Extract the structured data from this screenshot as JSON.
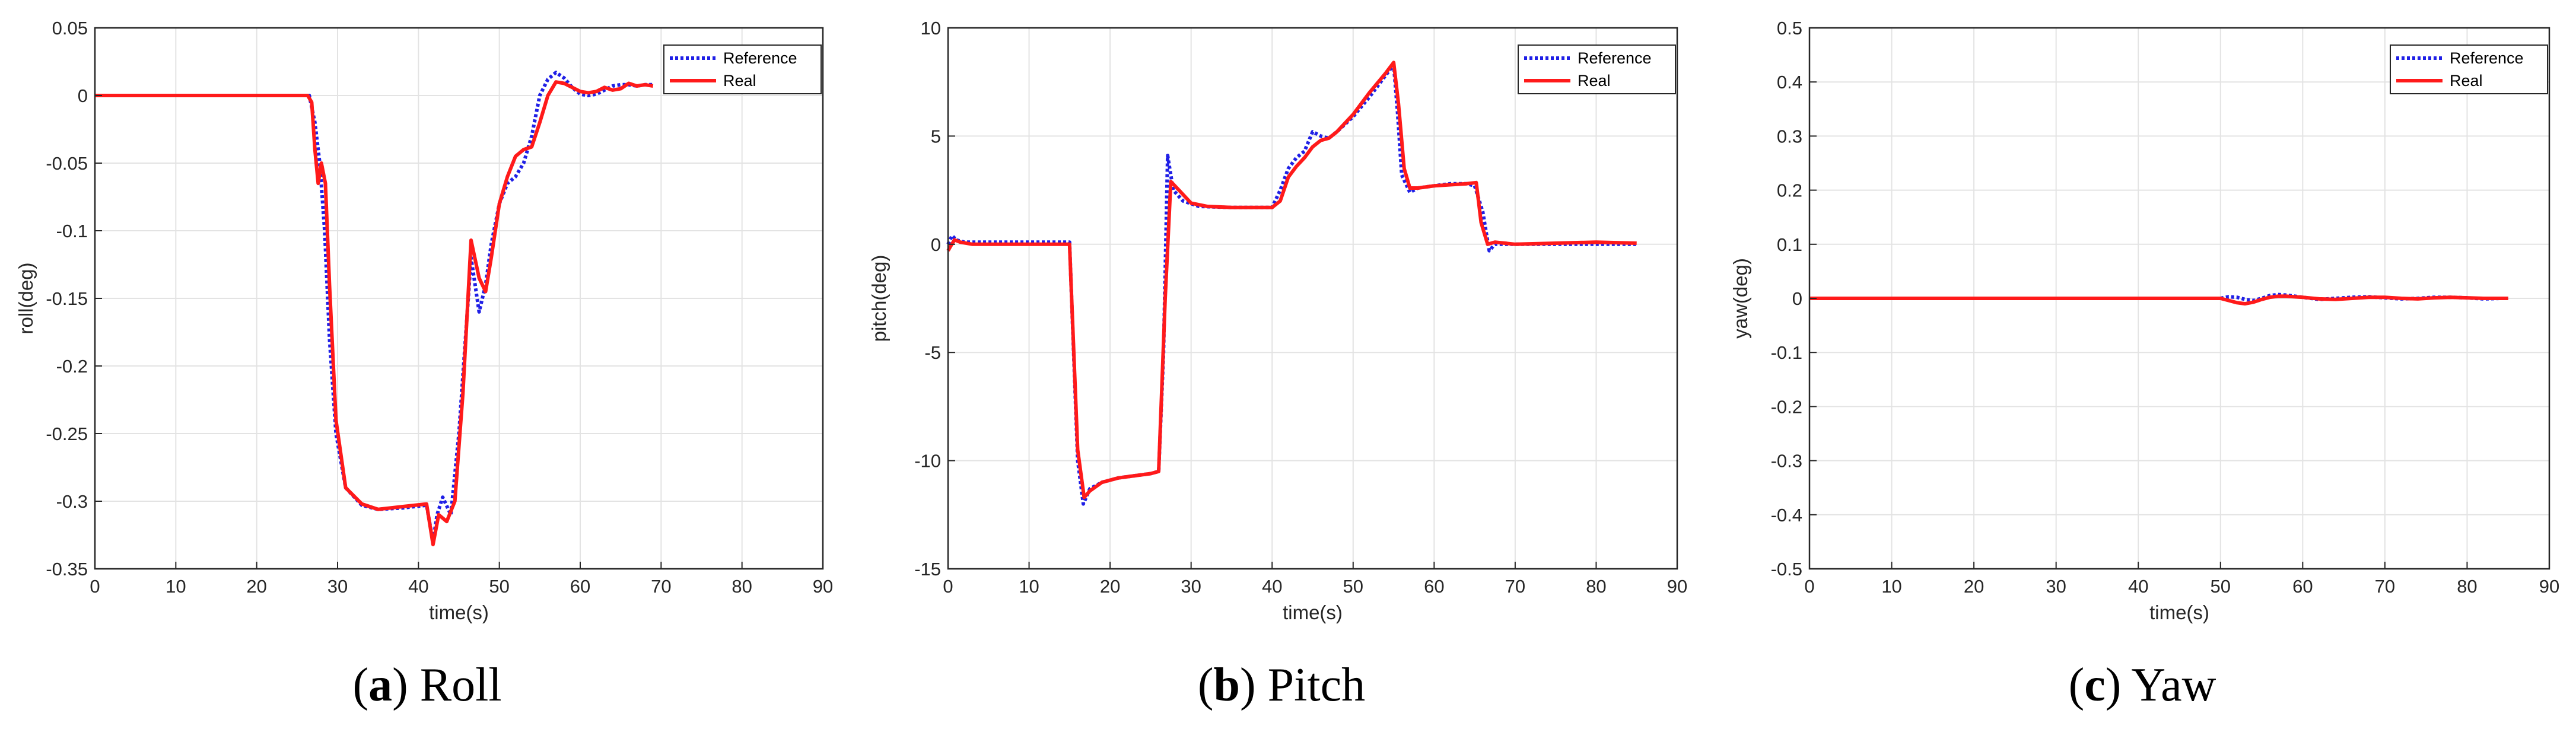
{
  "colors": {
    "reference": "#1f1fe6",
    "real": "#ff1a1a",
    "grid": "#e3e3e3",
    "axis": "#262626"
  },
  "chart_data": [
    {
      "type": "line",
      "caption_letter": "a",
      "caption_text": "Roll",
      "xlabel": "time(s)",
      "ylabel": "roll(deg)",
      "xlim": [
        0,
        90
      ],
      "ylim": [
        -0.35,
        0.05
      ],
      "xticks": [
        0,
        10,
        20,
        30,
        40,
        50,
        60,
        70,
        80,
        90
      ],
      "yticks": [
        0.05,
        0,
        -0.05,
        -0.1,
        -0.15,
        -0.2,
        -0.25,
        -0.3,
        -0.35
      ],
      "ytick_labels": [
        "0.05",
        "0",
        "-0.05",
        "-0.1",
        "-0.15",
        "-0.2",
        "-0.25",
        "-0.3",
        "-0.35"
      ],
      "grid": true,
      "legend_position": "top-right",
      "series": [
        {
          "name": "Reference",
          "style": "dotted",
          "x": [
            0,
            26.5,
            27.2,
            27.8,
            28.4,
            29,
            29.8,
            31,
            33,
            35,
            38,
            41,
            41.8,
            42.3,
            43,
            44,
            45,
            46.5,
            47.5,
            48.3,
            49,
            50,
            51,
            52,
            53,
            54,
            55,
            56,
            57,
            58,
            59,
            60,
            61,
            62,
            63,
            64,
            65,
            66,
            67,
            68,
            69
          ],
          "y": [
            0,
            0,
            -0.02,
            -0.05,
            -0.1,
            -0.18,
            -0.25,
            -0.29,
            -0.303,
            -0.306,
            -0.305,
            -0.303,
            -0.33,
            -0.31,
            -0.297,
            -0.31,
            -0.25,
            -0.12,
            -0.16,
            -0.14,
            -0.11,
            -0.08,
            -0.065,
            -0.06,
            -0.05,
            -0.03,
            0.0,
            0.012,
            0.017,
            0.013,
            0.006,
            0.001,
            0.0,
            0.001,
            0.004,
            0.007,
            0.008,
            0.008,
            0.007,
            0.008,
            0.008
          ]
        },
        {
          "name": "Real",
          "style": "solid",
          "x": [
            0,
            26.3,
            26.8,
            27.2,
            27.6,
            28.0,
            28.5,
            29,
            29.8,
            31,
            33,
            35,
            38,
            41,
            41.8,
            42.5,
            43.5,
            44.5,
            45.5,
            46.5,
            47.5,
            48.3,
            49,
            50,
            51,
            52,
            53,
            54,
            55,
            56,
            57,
            58,
            59,
            60,
            61,
            62,
            63,
            64,
            65,
            66,
            67,
            68,
            69
          ],
          "y": [
            0,
            0,
            -0.005,
            -0.04,
            -0.065,
            -0.05,
            -0.065,
            -0.14,
            -0.24,
            -0.29,
            -0.302,
            -0.306,
            -0.304,
            -0.302,
            -0.332,
            -0.31,
            -0.315,
            -0.3,
            -0.22,
            -0.107,
            -0.135,
            -0.145,
            -0.12,
            -0.08,
            -0.06,
            -0.045,
            -0.04,
            -0.038,
            -0.02,
            0.0,
            0.01,
            0.009,
            0.006,
            0.003,
            0.002,
            0.003,
            0.006,
            0.004,
            0.005,
            0.009,
            0.007,
            0.008,
            0.007
          ]
        }
      ]
    },
    {
      "type": "line",
      "caption_letter": "b",
      "caption_text": "Pitch",
      "xlabel": "time(s)",
      "ylabel": "pitch(deg)",
      "xlim": [
        0,
        90
      ],
      "ylim": [
        -15,
        10
      ],
      "xticks": [
        0,
        10,
        20,
        30,
        40,
        50,
        60,
        70,
        80,
        90
      ],
      "yticks": [
        10,
        5,
        0,
        -5,
        -10,
        -15
      ],
      "ytick_labels": [
        "10",
        "5",
        "0",
        "-5",
        "-10",
        "-15"
      ],
      "grid": true,
      "legend_position": "top-right",
      "series": [
        {
          "name": "Reference",
          "style": "dotted",
          "x": [
            0,
            0.5,
            1,
            2,
            15,
            15.3,
            16,
            16.7,
            17.5,
            19,
            21,
            23,
            25,
            26,
            26.6,
            27.1,
            27.8,
            29,
            31,
            35,
            40,
            41,
            42,
            43,
            44,
            45,
            46,
            47,
            48,
            50,
            52,
            54,
            55,
            55.5,
            56,
            57,
            58,
            60,
            62,
            64,
            65,
            66,
            66.8,
            67.5,
            70,
            75,
            80,
            85
          ],
          "y": [
            0,
            0.4,
            0.2,
            0.1,
            0.1,
            -3,
            -10,
            -12,
            -11.3,
            -11,
            -10.8,
            -10.7,
            -10.6,
            -10.5,
            -5,
            4.1,
            2.5,
            2.0,
            1.75,
            1.7,
            1.7,
            2.5,
            3.5,
            4.0,
            4.3,
            5.2,
            5.0,
            4.9,
            5.2,
            5.9,
            6.8,
            7.8,
            8.3,
            6,
            3.2,
            2.4,
            2.6,
            2.7,
            2.8,
            2.8,
            2.7,
            1.5,
            -0.3,
            0.0,
            0.0,
            0.0,
            0.0,
            0.0
          ]
        },
        {
          "name": "Real",
          "style": "solid",
          "x": [
            0,
            0.3,
            0.8,
            1.5,
            3,
            15,
            15.2,
            16.0,
            16.8,
            17.5,
            19,
            21,
            23,
            25,
            26,
            26.8,
            27.5,
            28.5,
            30,
            32,
            35,
            40,
            41,
            42,
            43,
            44,
            45,
            46,
            47,
            48,
            50,
            52,
            54,
            55,
            55.6,
            56.3,
            57,
            58,
            60,
            62,
            64,
            65.2,
            65.8,
            66.6,
            67.5,
            70,
            75,
            80,
            85
          ],
          "y": [
            -0.3,
            -0.1,
            0.2,
            0.1,
            0.0,
            0.0,
            -2,
            -9.5,
            -11.7,
            -11.4,
            -11.0,
            -10.8,
            -10.7,
            -10.6,
            -10.5,
            -2.5,
            2.9,
            2.5,
            1.9,
            1.75,
            1.7,
            1.7,
            2.0,
            3.1,
            3.6,
            4.0,
            4.5,
            4.8,
            4.9,
            5.2,
            6.0,
            7.0,
            7.9,
            8.4,
            6.5,
            3.5,
            2.6,
            2.6,
            2.7,
            2.75,
            2.8,
            2.85,
            1.0,
            0.0,
            0.1,
            0.0,
            0.05,
            0.1,
            0.05
          ]
        }
      ]
    },
    {
      "type": "line",
      "caption_letter": "c",
      "caption_text": "Yaw",
      "xlabel": "time(s)",
      "ylabel": "yaw(deg)",
      "xlim": [
        0,
        90
      ],
      "ylim": [
        -0.5,
        0.5
      ],
      "xticks": [
        0,
        10,
        20,
        30,
        40,
        50,
        60,
        70,
        80,
        90
      ],
      "yticks": [
        0.5,
        0.4,
        0.3,
        0.2,
        0.1,
        0,
        -0.1,
        -0.2,
        -0.3,
        -0.4,
        -0.5
      ],
      "ytick_labels": [
        "0.5",
        "0.4",
        "0.3",
        "0.2",
        "0.1",
        "0",
        "-0.1",
        "-0.2",
        "-0.3",
        "-0.4",
        "-0.5"
      ],
      "grid": true,
      "legend_position": "top-right",
      "series": [
        {
          "name": "Reference",
          "style": "dotted",
          "x": [
            0,
            50,
            51,
            52,
            53,
            54,
            55,
            56,
            57,
            58,
            60,
            62,
            64,
            66,
            68,
            70,
            72,
            74,
            76,
            78,
            80,
            82,
            84,
            85
          ],
          "y": [
            0,
            0,
            0.003,
            0.002,
            -0.002,
            -0.004,
            0.0,
            0.005,
            0.007,
            0.006,
            0.002,
            -0.002,
            0.0,
            0.002,
            0.003,
            0.001,
            -0.001,
            0.0,
            0.002,
            0.002,
            0.001,
            -0.001,
            0.0,
            0.0
          ]
        },
        {
          "name": "Real",
          "style": "solid",
          "x": [
            0,
            50,
            51,
            52,
            53,
            54,
            55,
            56,
            57,
            58,
            60,
            62,
            64,
            66,
            68,
            70,
            72,
            74,
            76,
            78,
            80,
            82,
            84,
            85
          ],
          "y": [
            0,
            0,
            -0.004,
            -0.008,
            -0.01,
            -0.007,
            -0.002,
            0.002,
            0.004,
            0.004,
            0.002,
            -0.001,
            -0.002,
            0.0,
            0.002,
            0.002,
            0.0,
            -0.001,
            0.001,
            0.002,
            0.001,
            0.0,
            0.0,
            0.0
          ]
        }
      ]
    }
  ]
}
